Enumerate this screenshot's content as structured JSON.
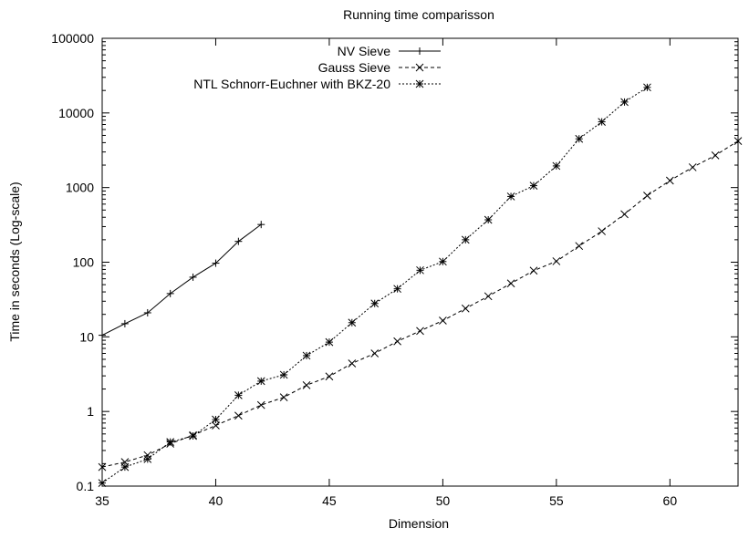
{
  "chart_data": {
    "type": "line",
    "title": "Running time comparisson",
    "xlabel": "Dimension",
    "ylabel": "Time in seconds (Log-scale)",
    "xlim": [
      35,
      63
    ],
    "ylim": [
      0.1,
      100000
    ],
    "yscale": "log",
    "grid": false,
    "legend_position": "top-center",
    "x_ticks": [
      35,
      40,
      45,
      50,
      55,
      60
    ],
    "x_tick_labels": [
      "35",
      "40",
      "45",
      "50",
      "55",
      "60"
    ],
    "y_ticks": [
      0.1,
      1,
      10,
      100,
      1000,
      10000,
      100000
    ],
    "y_tick_labels": [
      "0.1",
      "1",
      "10",
      "100",
      "1000",
      "10000",
      "100000"
    ],
    "series": [
      {
        "name": "NV Sieve",
        "marker": "plus",
        "line": "solid",
        "x": [
          35,
          36,
          37,
          38,
          39,
          40,
          41,
          42
        ],
        "y": [
          10.5,
          15,
          21,
          38,
          63,
          97,
          190,
          320
        ]
      },
      {
        "name": "Gauss Sieve",
        "marker": "cross",
        "line": "dashed",
        "x": [
          35,
          36,
          37,
          38,
          39,
          40,
          41,
          42,
          43,
          44,
          45,
          46,
          47,
          48,
          49,
          50,
          51,
          52,
          53,
          54,
          55,
          56,
          57,
          58,
          59,
          60,
          61,
          62,
          63
        ],
        "y": [
          0.18,
          0.21,
          0.26,
          0.37,
          0.48,
          0.65,
          0.88,
          1.22,
          1.55,
          2.25,
          2.95,
          4.4,
          6.0,
          8.7,
          12,
          16.5,
          24,
          35,
          52,
          77,
          103,
          165,
          260,
          440,
          780,
          1240,
          1870,
          2700,
          4200
        ]
      },
      {
        "name": "NTL Schnorr-Euchner with BKZ-20",
        "marker": "star",
        "line": "dotted",
        "x": [
          35,
          36,
          37,
          38,
          39,
          40,
          41,
          42,
          43,
          44,
          45,
          46,
          47,
          48,
          49,
          50,
          51,
          52,
          53,
          54,
          55,
          56,
          57,
          58,
          59
        ],
        "y": [
          0.11,
          0.18,
          0.23,
          0.39,
          0.47,
          0.78,
          1.65,
          2.55,
          3.1,
          5.6,
          8.5,
          15.5,
          28,
          44,
          78,
          102,
          200,
          370,
          760,
          1060,
          1950,
          4500,
          7600,
          14000,
          22000
        ]
      }
    ]
  }
}
